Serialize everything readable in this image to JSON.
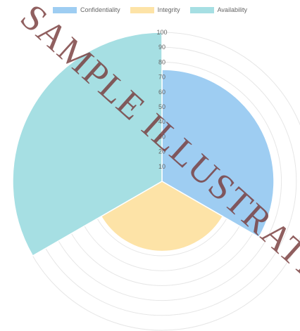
{
  "chart_data": {
    "type": "polarArea",
    "categories": [
      "Confidentiality",
      "Integrity",
      "Availability"
    ],
    "values": [
      75,
      47,
      100
    ],
    "colors": [
      "#9ecdf2",
      "#fde3a7",
      "#a6dfe3"
    ],
    "r_ticks": [
      "10",
      "20",
      "30",
      "40",
      "50",
      "60",
      "70",
      "80",
      "90",
      "100"
    ],
    "rlim": [
      0,
      100
    ],
    "grid": true,
    "legend": "top"
  },
  "watermark": "SAMPLE ILLUSTRATION"
}
